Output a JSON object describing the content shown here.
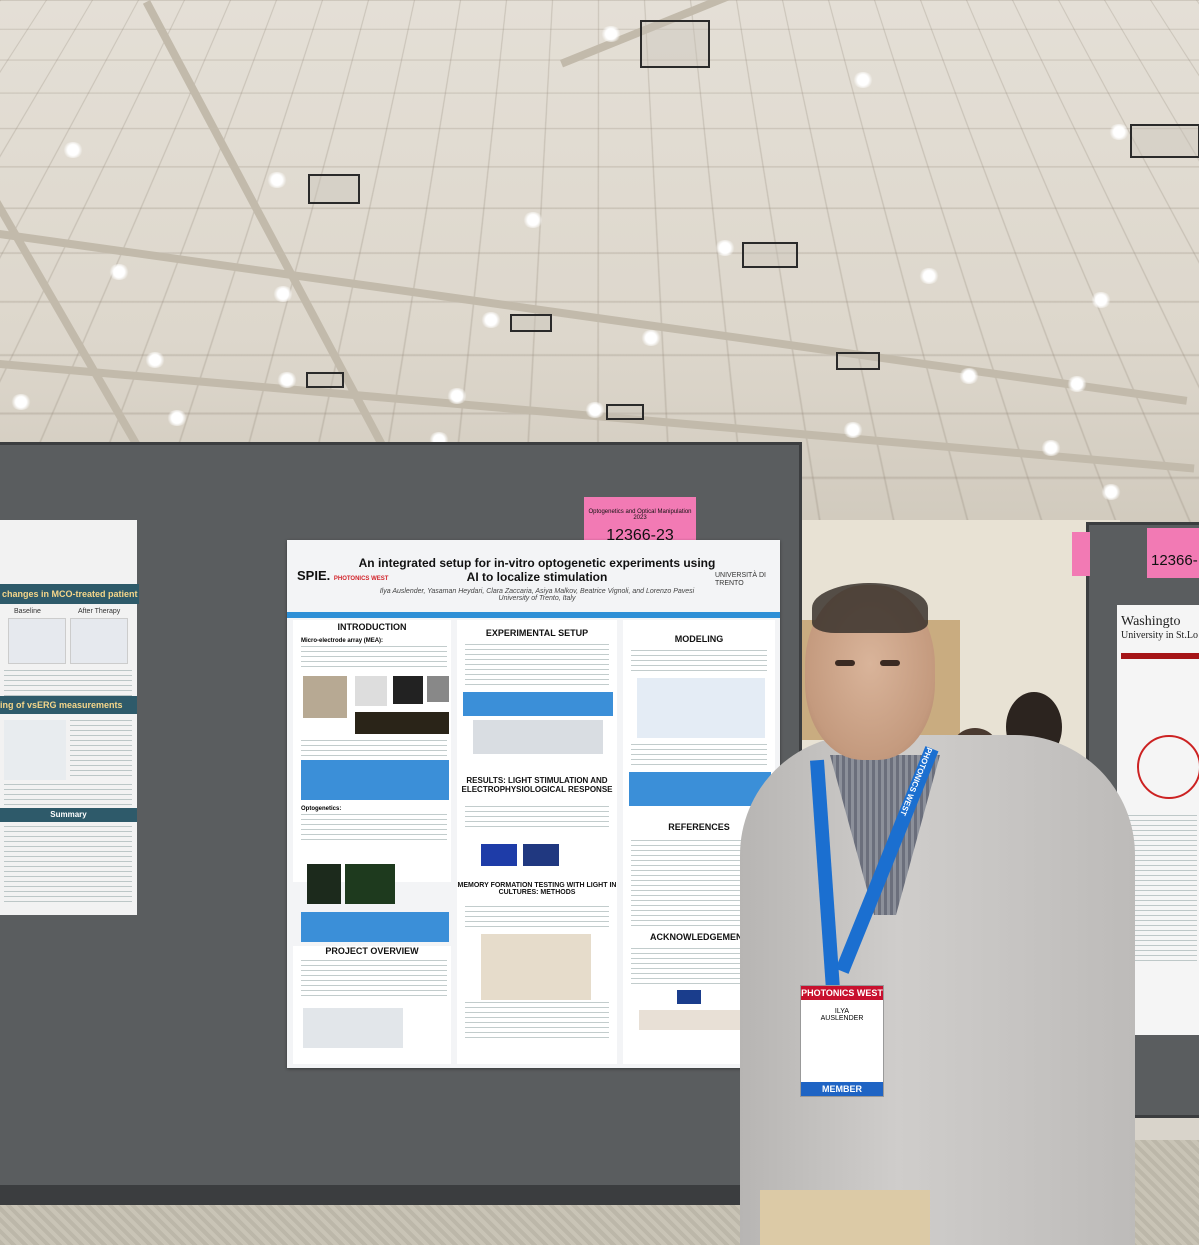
{
  "poster": {
    "title_line1": "An integrated setup for in-vitro optogenetic experiments using",
    "title_line2": "AI to localize stimulation",
    "authors": "Ilya Auslender, Yasaman Heydari, Clara Zaccaria, Asiya Malkov, Beatrice Vignoli, and Lorenzo Pavesi",
    "affiliation": "University of Trento, Italy",
    "logo_spie": "SPIE.",
    "logo_photonics": "PHOTONICS WEST",
    "logo_university": "UNIVERSITÀ DI TRENTO",
    "sections": {
      "introduction": "INTRODUCTION",
      "experimental_setup": "EXPERIMENTAL SETUP",
      "modeling": "MODELING",
      "results": "RESULTS: LIGHT STIMULATION AND ELECTROPHYSIOLOGICAL RESPONSE",
      "references": "REFERENCES",
      "memory": "MEMORY FORMATION TESTING WITH LIGHT IN CULTURES: METHODS",
      "project_overview": "PROJECT OVERVIEW",
      "acknowledgement": "ACKNOWLEDGEMENT"
    },
    "intro_subhead": "Micro-electrode array (MEA):",
    "opto_subhead": "Optogenetics:"
  },
  "tags": {
    "center_small": "Optogenetics and Optical Manipulation 2023",
    "center_number": "12366-23",
    "right_partial": "12366-"
  },
  "left_poster": {
    "heading1": "changes in MCO-treated patient",
    "heading2": "ing of vsERG measurements",
    "summary": "Summary",
    "label_baseline": "Baseline",
    "label_after": "After Therapy"
  },
  "right_poster": {
    "title_line1": "Washingto",
    "title_line2": "University in St.Lo"
  },
  "badge": {
    "event": "PHOTONICS WEST",
    "first_name": "ILYA",
    "last_name": "AUSLENDER",
    "member": "MEMBER"
  },
  "lanyard_text": "PHOTONICS WEST"
}
